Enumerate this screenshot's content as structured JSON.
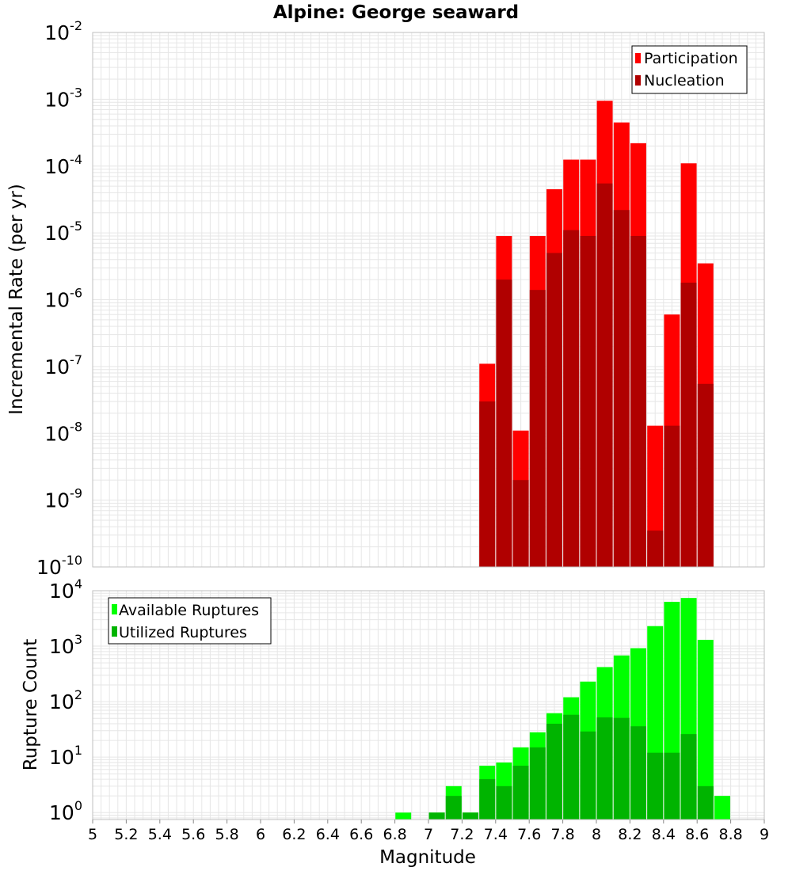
{
  "title": "Alpine: George seaward",
  "xlabel": "Magnitude",
  "colors": {
    "participation": "#ff0000",
    "nucleation": "#b00000",
    "available": "#00ff00",
    "utilized": "#00b400",
    "grid": "#e6e6e6",
    "frame": "#bfbfbf",
    "text": "#000000"
  },
  "chart_data": [
    {
      "type": "bar",
      "scale": "log",
      "stacked": "overlay",
      "ylabel": "Incremental Rate (per yr)",
      "xlim": [
        5,
        9
      ],
      "ylim": [
        1e-10,
        0.01
      ],
      "y_ticks_exp": [
        -10,
        -9,
        -8,
        -7,
        -6,
        -5,
        -4,
        -3,
        -2
      ],
      "grid": true,
      "legend_position": "top-right",
      "x": [
        7.35,
        7.45,
        7.55,
        7.65,
        7.75,
        7.85,
        7.95,
        8.05,
        8.15,
        8.25,
        8.35,
        8.45,
        8.55,
        8.65
      ],
      "series": [
        {
          "name": "Participation",
          "color": "participation",
          "values": [
            1.1e-07,
            9e-06,
            1.1e-08,
            9e-06,
            4.5e-05,
            0.000125,
            0.000125,
            0.00095,
            0.00045,
            0.00022,
            1.3e-08,
            6e-07,
            0.00011,
            3.5e-06
          ]
        },
        {
          "name": "Nucleation",
          "color": "nucleation",
          "values": [
            3e-08,
            2e-06,
            2e-09,
            1.4e-06,
            5e-06,
            1.1e-05,
            9e-06,
            5.5e-05,
            2.2e-05,
            9e-06,
            3.5e-10,
            1.3e-08,
            1.8e-06,
            5.5e-08
          ]
        }
      ]
    },
    {
      "type": "bar",
      "scale": "log",
      "stacked": "overlay",
      "ylabel": "Rupture Count",
      "xlim": [
        5,
        9
      ],
      "ylim": [
        0.75,
        10000
      ],
      "y_ticks_exp": [
        0,
        1,
        2,
        3,
        4
      ],
      "x_ticks": [
        "5",
        "5.2",
        "5.4",
        "5.6",
        "5.8",
        "6",
        "6.2",
        "6.4",
        "6.6",
        "6.8",
        "7",
        "7.2",
        "7.4",
        "7.6",
        "7.8",
        "8",
        "8.2",
        "8.4",
        "8.6",
        "8.8",
        "9"
      ],
      "grid": true,
      "legend_position": "top-left",
      "x": [
        6.85,
        7.05,
        7.15,
        7.25,
        7.35,
        7.45,
        7.55,
        7.65,
        7.75,
        7.85,
        7.95,
        8.05,
        8.15,
        8.25,
        8.35,
        8.45,
        8.55,
        8.65,
        8.75
      ],
      "series": [
        {
          "name": "Available Ruptures",
          "color": "available",
          "values": [
            1,
            1,
            3,
            1,
            7,
            8,
            15,
            28,
            62,
            120,
            230,
            420,
            680,
            920,
            2300,
            6300,
            7400,
            1300,
            2
          ]
        },
        {
          "name": "Utilized Ruptures",
          "color": "utilized",
          "values": [
            0,
            1,
            2,
            1,
            4,
            3,
            7,
            15,
            40,
            58,
            29,
            52,
            51,
            36,
            12,
            12,
            26,
            3,
            0
          ]
        }
      ]
    }
  ]
}
